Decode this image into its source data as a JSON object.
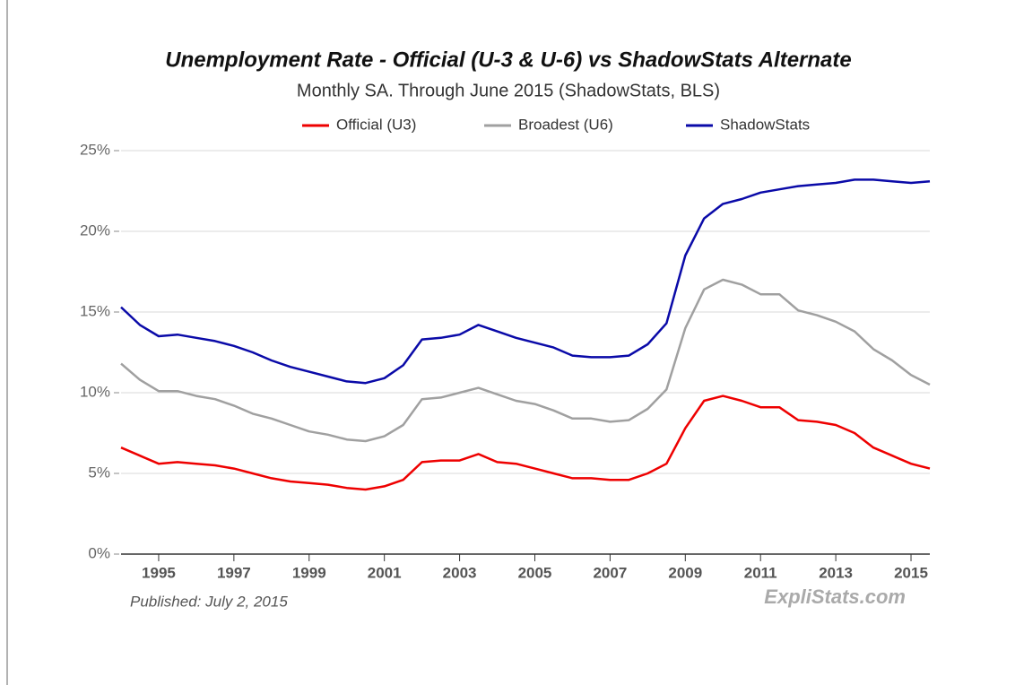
{
  "chart_data": {
    "type": "line",
    "title": "Unemployment Rate - Official (U-3 & U-6) vs ShadowStats Alternate",
    "subtitle": "Monthly SA. Through June 2015  (ShadowStats, BLS)",
    "note": "Published: July 2, 2015",
    "watermark": "ExpliStats.com",
    "x": [
      1994,
      1994.5,
      1995,
      1995.5,
      1996,
      1996.5,
      1997,
      1997.5,
      1998,
      1998.5,
      1999,
      1999.5,
      2000,
      2000.5,
      2001,
      2001.5,
      2002,
      2002.5,
      2003,
      2003.5,
      2004,
      2004.5,
      2005,
      2005.5,
      2006,
      2006.5,
      2007,
      2007.5,
      2008,
      2008.5,
      2009,
      2009.5,
      2010,
      2010.5,
      2011,
      2011.5,
      2012,
      2012.5,
      2013,
      2013.5,
      2014,
      2014.5,
      2015,
      2015.5
    ],
    "series": [
      {
        "name": "Official (U3)",
        "color": "#ee0000",
        "values": [
          6.6,
          6.1,
          5.6,
          5.7,
          5.6,
          5.5,
          5.3,
          5.0,
          4.7,
          4.5,
          4.4,
          4.3,
          4.1,
          4.0,
          4.2,
          4.6,
          5.7,
          5.8,
          5.8,
          6.2,
          5.7,
          5.6,
          5.3,
          5.0,
          4.7,
          4.7,
          4.6,
          4.6,
          5.0,
          5.6,
          7.8,
          9.5,
          9.8,
          9.5,
          9.1,
          9.1,
          8.3,
          8.2,
          8.0,
          7.5,
          6.6,
          6.1,
          5.6,
          5.3
        ]
      },
      {
        "name": "Broadest (U6)",
        "color": "#a0a0a0",
        "values": [
          11.8,
          10.8,
          10.1,
          10.1,
          9.8,
          9.6,
          9.2,
          8.7,
          8.4,
          8.0,
          7.6,
          7.4,
          7.1,
          7.0,
          7.3,
          8.0,
          9.6,
          9.7,
          10.0,
          10.3,
          9.9,
          9.5,
          9.3,
          8.9,
          8.4,
          8.4,
          8.2,
          8.3,
          9.0,
          10.2,
          14.0,
          16.4,
          17.0,
          16.7,
          16.1,
          16.1,
          15.1,
          14.8,
          14.4,
          13.8,
          12.7,
          12.0,
          11.1,
          10.5
        ]
      },
      {
        "name": "ShadowStats",
        "color": "#0a0aa8",
        "values": [
          15.3,
          14.2,
          13.5,
          13.6,
          13.4,
          13.2,
          12.9,
          12.5,
          12.0,
          11.6,
          11.3,
          11.0,
          10.7,
          10.6,
          10.9,
          11.7,
          13.3,
          13.4,
          13.6,
          14.2,
          13.8,
          13.4,
          13.1,
          12.8,
          12.3,
          12.2,
          12.2,
          12.3,
          13.0,
          14.3,
          18.5,
          20.8,
          21.7,
          22.0,
          22.4,
          22.6,
          22.8,
          22.9,
          23.0,
          23.2,
          23.2,
          23.1,
          23.0,
          23.1
        ]
      }
    ],
    "xlim": [
      1994,
      2015.5
    ],
    "xticks": [
      1995,
      1997,
      1999,
      2001,
      2003,
      2005,
      2007,
      2009,
      2011,
      2013,
      2015
    ],
    "ylim": [
      0,
      25
    ],
    "yticks": [
      {
        "value": 0,
        "label": "0%"
      },
      {
        "value": 5,
        "label": "5%"
      },
      {
        "value": 10,
        "label": "10%"
      },
      {
        "value": 15,
        "label": "15%"
      },
      {
        "value": 20,
        "label": "20%"
      },
      {
        "value": 25,
        "label": "25%"
      }
    ],
    "grid": true
  }
}
